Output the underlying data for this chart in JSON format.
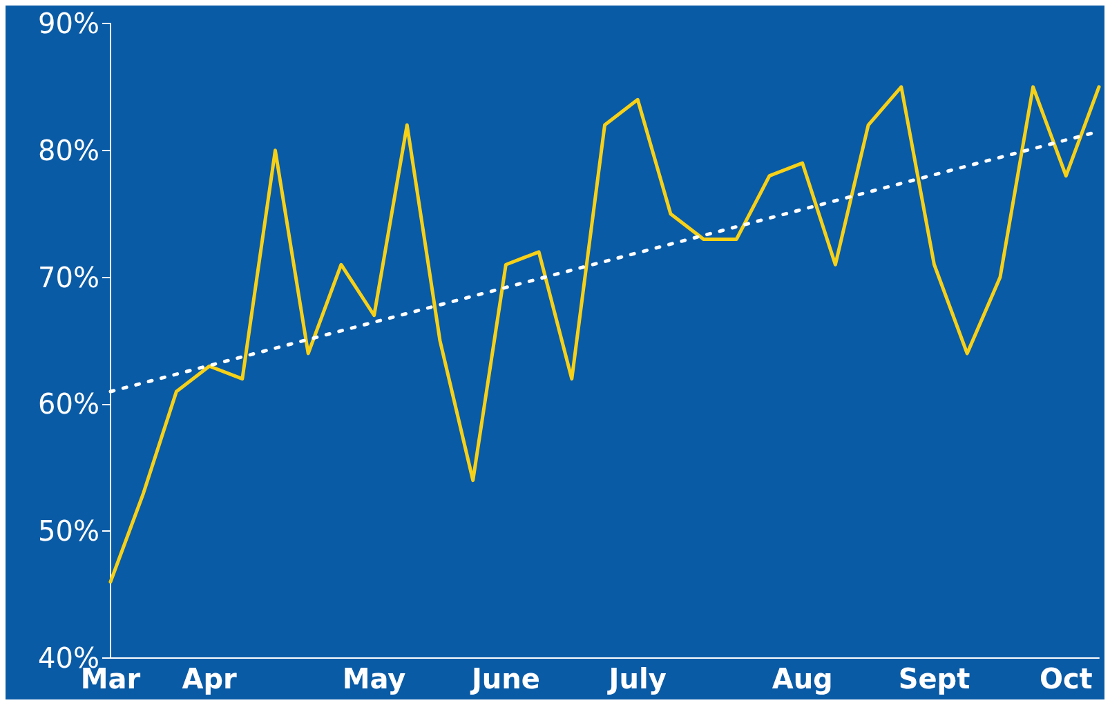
{
  "chart_data": {
    "type": "line",
    "categories": [
      "Mar",
      null,
      null,
      "Apr",
      null,
      null,
      null,
      null,
      "May",
      null,
      null,
      null,
      "June",
      null,
      null,
      null,
      "July",
      null,
      null,
      null,
      null,
      "Aug",
      null,
      null,
      null,
      "Sept",
      null,
      null,
      null,
      "Oct",
      null
    ],
    "series": [
      {
        "color": "#f7d117",
        "values": [
          46,
          53,
          61,
          63,
          62,
          80,
          64,
          71,
          67,
          82,
          65,
          54,
          71,
          72,
          62,
          82,
          84,
          75,
          73,
          73,
          78,
          79,
          71,
          82,
          85,
          71,
          64,
          70,
          85,
          78,
          85
        ]
      },
      {
        "type": "line",
        "color": "#ffffff",
        "line_style": "dotted",
        "values": [
          61,
          null,
          null,
          null,
          null,
          null,
          null,
          null,
          null,
          null,
          null,
          null,
          null,
          null,
          null,
          null,
          null,
          null,
          null,
          null,
          null,
          null,
          null,
          null,
          null,
          null,
          null,
          null,
          null,
          null,
          81.5
        ]
      }
    ],
    "ylim": [
      40,
      90
    ],
    "yticks": [
      {
        "value": 40,
        "label": "40%"
      },
      {
        "value": 50,
        "label": "50%"
      },
      {
        "value": 60,
        "label": "60%"
      },
      {
        "value": 70,
        "label": "70%"
      },
      {
        "value": 80,
        "label": "80%"
      },
      {
        "value": 90,
        "label": "90%"
      }
    ],
    "grid": false,
    "marker": "none",
    "line_style": "solid"
  }
}
